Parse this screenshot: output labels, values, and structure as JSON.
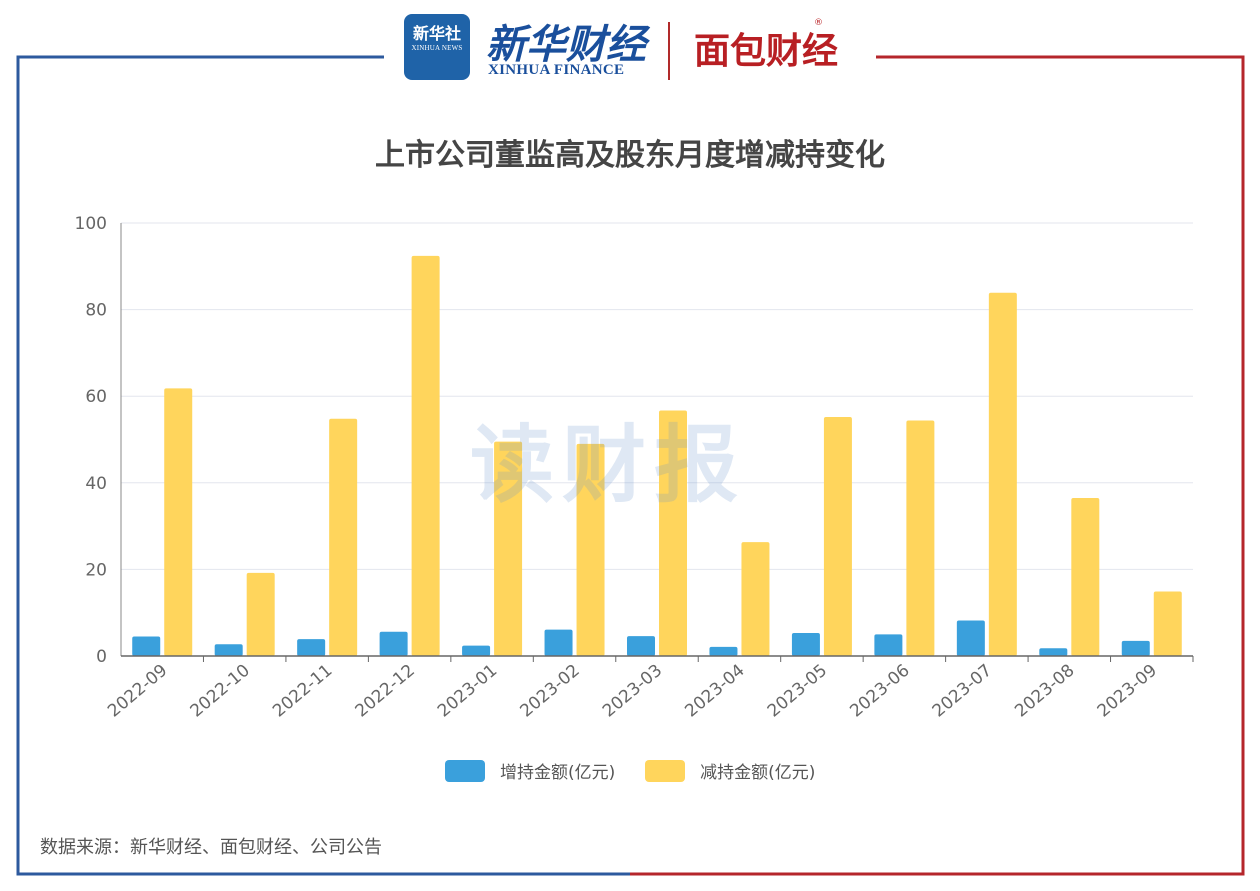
{
  "header": {
    "xinhua_news_cn": "新华社",
    "xinhua_news_en": "XINHUA NEWS",
    "xinhua_finance_cn": "新华财经",
    "xinhua_finance_en": "XINHUA FINANCE",
    "mianbao_cn": "面包财经",
    "mianbao_reg": "®"
  },
  "watermark": "读财报",
  "source_note": "数据来源：新华财经、面包财经、公司公告",
  "colors": {
    "frame_left": "#2d5a9e",
    "frame_right": "#b5262b",
    "increase": "#3aa0dc",
    "decrease": "#ffd55c"
  },
  "chart_data": {
    "type": "bar",
    "title": "上市公司董监高及股东月度增减持变化",
    "categories": [
      "2022-09",
      "2022-10",
      "2022-11",
      "2022-12",
      "2023-01",
      "2023-02",
      "2023-03",
      "2023-04",
      "2023-05",
      "2023-06",
      "2023-07",
      "2023-08",
      "2023-09"
    ],
    "series": [
      {
        "name": "增持金额(亿元)",
        "color": "#3aa0dc",
        "values": [
          4.5,
          2.7,
          3.9,
          5.6,
          2.4,
          6.1,
          4.6,
          2.1,
          5.3,
          5.0,
          8.2,
          1.8,
          3.5
        ]
      },
      {
        "name": "减持金额(亿元)",
        "color": "#ffd55c",
        "values": [
          61.8,
          19.2,
          54.8,
          92.4,
          49.5,
          49.0,
          56.7,
          26.3,
          55.2,
          54.4,
          83.9,
          36.5,
          14.9
        ]
      }
    ],
    "ylim": [
      0,
      100
    ],
    "yticks": [
      0,
      20,
      40,
      60,
      80,
      100
    ],
    "grid": true,
    "legend": "bottom"
  }
}
